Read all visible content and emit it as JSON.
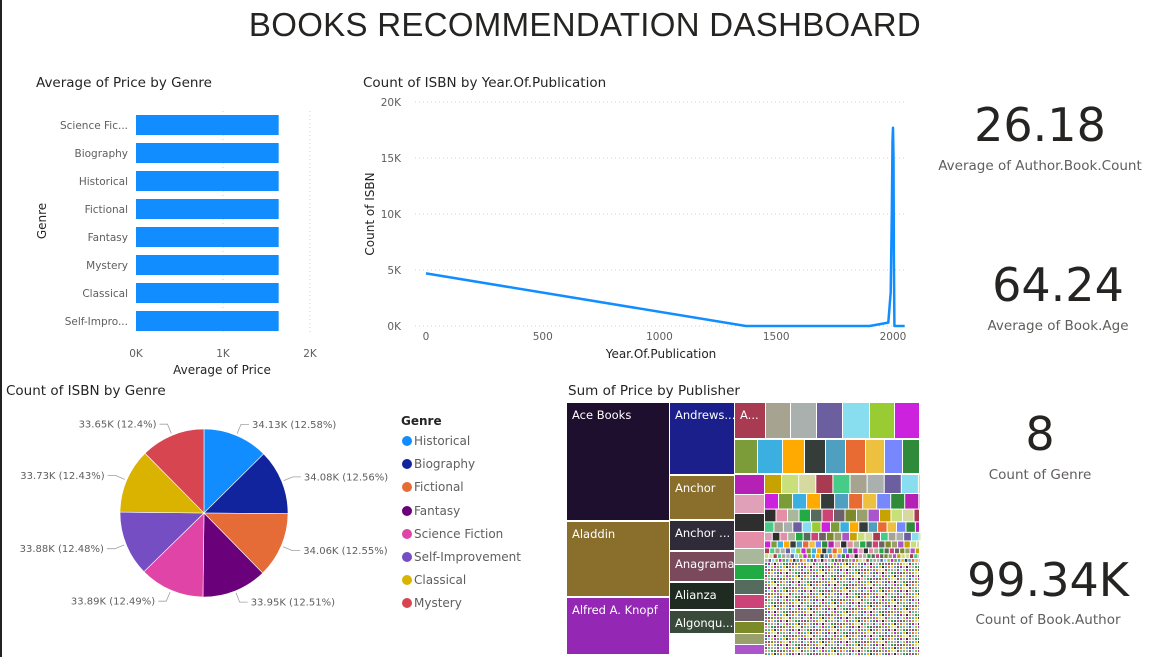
{
  "dashboard_title": "BOOKS RECOMMENDATION DASHBOARD",
  "kpis": [
    {
      "value": "26.18",
      "label": "Average of Author.Book.Count"
    },
    {
      "value": "64.24",
      "label": "Average of Book.Age"
    },
    {
      "value": "8",
      "label": "Count of Genre"
    },
    {
      "value": "99.34K",
      "label": "Count of Book.Author"
    }
  ],
  "chart_data": [
    {
      "type": "bar",
      "orientation": "horizontal",
      "title": "Average of Price by Genre",
      "xlabel": "Average of Price",
      "ylabel": "Genre",
      "categories": [
        "Science Fic...",
        "Biography",
        "Historical",
        "Fictional",
        "Fantasy",
        "Mystery",
        "Classical",
        "Self-Impro..."
      ],
      "values": [
        1640,
        1640,
        1640,
        1640,
        1640,
        1640,
        1640,
        1640
      ],
      "xlim": [
        0,
        2000
      ],
      "x_ticks": [
        "0K",
        "1K",
        "2K"
      ],
      "x_tick_values": [
        0,
        1000,
        2000
      ],
      "color": "#118DFF",
      "grid": true
    },
    {
      "type": "line",
      "title": "Count of ISBN by Year.Of.Publication",
      "xlabel": "Year.Of.Publication",
      "ylabel": "Count of ISBN",
      "x": [
        0,
        1370,
        1900,
        1980,
        1990,
        1995,
        1998,
        2000,
        2002,
        2004,
        2006,
        2020,
        2050
      ],
      "y": [
        4700,
        0,
        0,
        300,
        3000,
        10000,
        16500,
        17700,
        15000,
        6000,
        0,
        0,
        0
      ],
      "xlim": [
        -30,
        2060
      ],
      "ylim": [
        0,
        20000
      ],
      "x_ticks": [
        "0",
        "500",
        "1000",
        "1500",
        "2000"
      ],
      "x_tick_values": [
        0,
        500,
        1000,
        1500,
        2000
      ],
      "y_ticks": [
        "0K",
        "5K",
        "10K",
        "15K",
        "20K"
      ],
      "y_tick_values": [
        0,
        5000,
        10000,
        15000,
        20000
      ],
      "color": "#118DFF",
      "grid": true
    },
    {
      "type": "pie",
      "title": "Count of ISBN by Genre",
      "legend_title": "Genre",
      "legend_position": "right",
      "slices": [
        {
          "label": "Historical",
          "value": 34130,
          "display": "34.13K (12.58%)",
          "color": "#118DFF"
        },
        {
          "label": "Biography",
          "value": 34080,
          "display": "34.08K (12.56%)",
          "color": "#12239E"
        },
        {
          "label": "Fictional",
          "value": 34060,
          "display": "34.06K (12.55%)",
          "color": "#E66C37"
        },
        {
          "label": "Fantasy",
          "value": 33950,
          "display": "33.95K (12.51%)",
          "color": "#6B007B"
        },
        {
          "label": "Science Fiction",
          "value": 33890,
          "display": "33.89K (12.49%)",
          "color": "#E044A7"
        },
        {
          "label": "Self-Improvement",
          "value": 33880,
          "display": "33.88K (12.48%)",
          "color": "#744EC2"
        },
        {
          "label": "Classical",
          "value": 33730,
          "display": "33.73K (12.43%)",
          "color": "#D9B300"
        },
        {
          "label": "Mystery",
          "value": 33650,
          "display": "33.65K (12.4%)",
          "color": "#D64550"
        }
      ]
    },
    {
      "type": "treemap",
      "title": "Sum of Price by Publisher",
      "labeled_tiles": [
        {
          "label": "Ace Books",
          "color": "#1E0F2E"
        },
        {
          "label": "Aladdin",
          "color": "#8A6E2C"
        },
        {
          "label": "Alfred A. Knopf",
          "color": "#9427B4"
        },
        {
          "label": "Andrews...",
          "color": "#1A1F8C"
        },
        {
          "label": "Anchor",
          "color": "#8A6E2C"
        },
        {
          "label": "Anchor ...",
          "color": "#2F2B38"
        },
        {
          "label": "Anagrama",
          "color": "#7A4A5C"
        },
        {
          "label": "Alianza",
          "color": "#1F2A20"
        },
        {
          "label": "Algonqu...",
          "color": "#3A4A3A"
        },
        {
          "label": "A...",
          "color": "#A83A52"
        }
      ],
      "small_tile_palette": [
        "#C7A300",
        "#E58EA7",
        "#343D3A",
        "#A6A391",
        "#6E5F68",
        "#2F8A3A",
        "#CC22DD",
        "#C9E07A",
        "#A9B89A",
        "#4F9FC0",
        "#A9B0AE",
        "#7C8A2A",
        "#B520B5",
        "#7C9C3A",
        "#D6D9A0",
        "#22AA44",
        "#E86B33",
        "#6B5FA0",
        "#9AA06B",
        "#E0A0B8",
        "#3BB0E0",
        "#A83A52",
        "#556B5E",
        "#EEC040",
        "#88DDEE",
        "#AA55CC",
        "#2E2E2E",
        "#FFAA00",
        "#44CC88",
        "#CC4477",
        "#7788FF",
        "#99CC33"
      ]
    }
  ]
}
